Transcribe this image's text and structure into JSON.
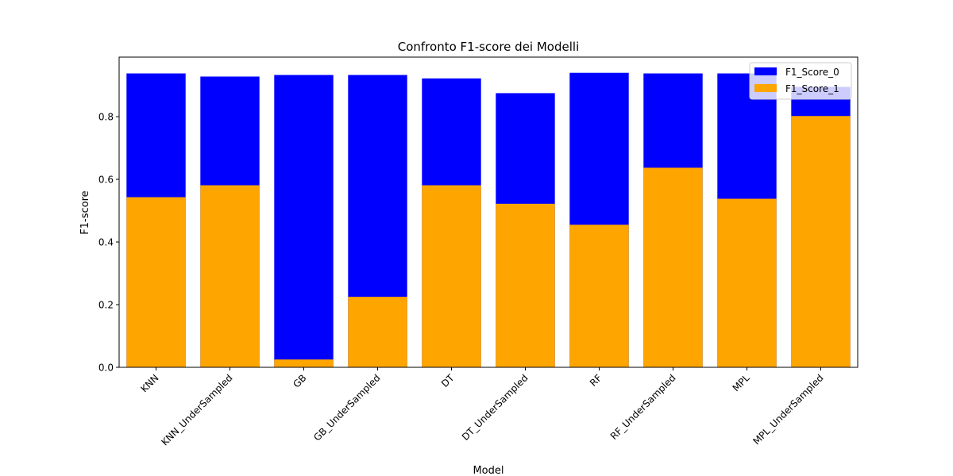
{
  "chart_data": {
    "type": "bar",
    "title": "Confronto F1-score dei Modelli",
    "xlabel": "Model",
    "ylabel": "F1-score",
    "ylim": [
      0,
      0.99
    ],
    "yticks": [
      "0.0",
      "0.2",
      "0.4",
      "0.6",
      "0.8"
    ],
    "grid": false,
    "legend_position": "top-right",
    "categories": [
      "KNN",
      "KNN_UnderSampled",
      "GB",
      "GB_UnderSampled",
      "DT",
      "DT_UnderSampled",
      "RF",
      "RF_UnderSampled",
      "MPL",
      "MPL_UnderSampled"
    ],
    "series": [
      {
        "name": "F1_Score_0",
        "color": "#0000ff",
        "values": [
          0.938,
          0.928,
          0.933,
          0.933,
          0.922,
          0.875,
          0.94,
          0.938,
          0.938,
          0.895
        ]
      },
      {
        "name": "F1_Score_1",
        "color": "#ffa500",
        "values": [
          0.543,
          0.581,
          0.025,
          0.225,
          0.581,
          0.522,
          0.455,
          0.637,
          0.538,
          0.802
        ]
      }
    ]
  }
}
